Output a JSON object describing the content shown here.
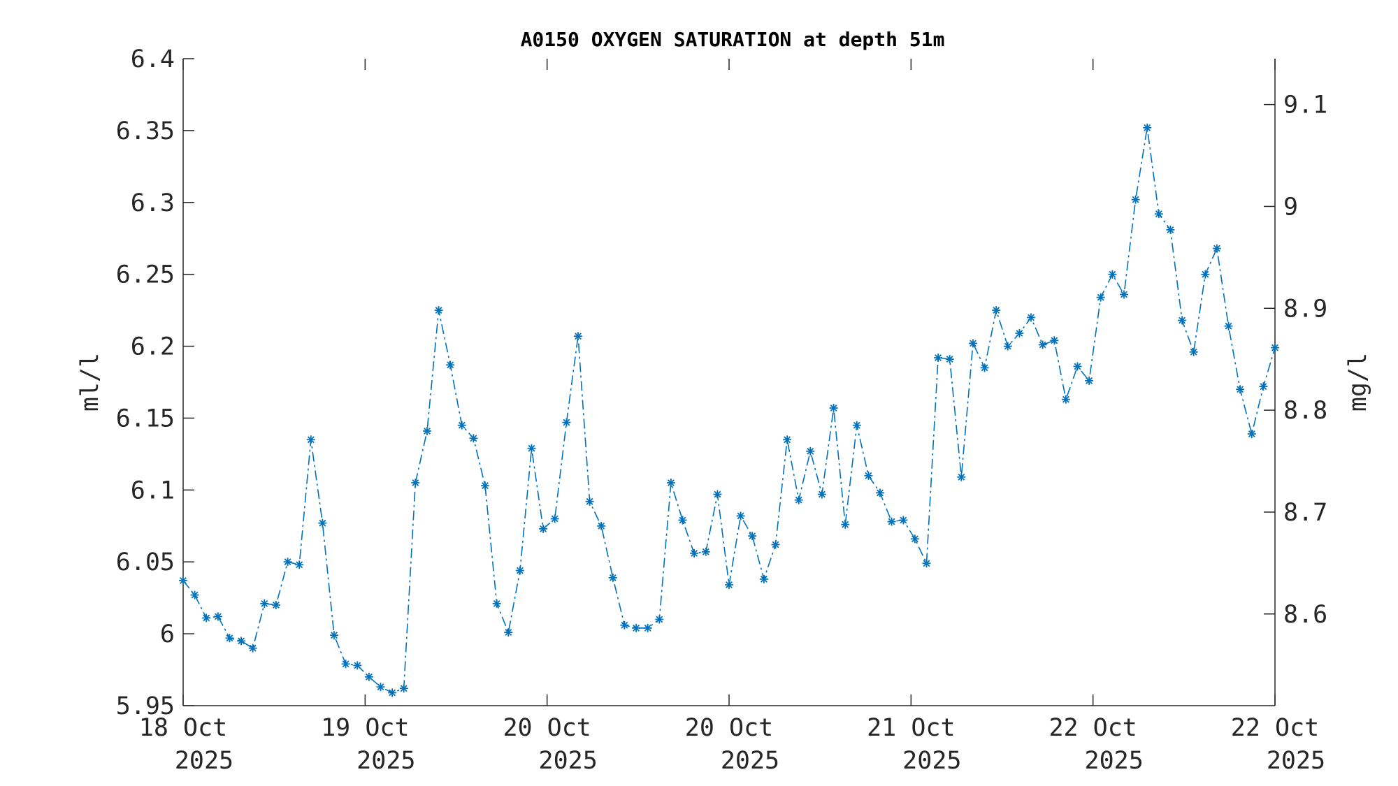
{
  "chart_data": {
    "type": "line",
    "title": "A0150 OXYGEN SATURATION at depth 51m",
    "ylabel_left": "ml/l",
    "ylabel_right": "mg/l",
    "ylim_left": [
      5.95,
      6.4
    ],
    "ylim_right": [
      8.51,
      9.145
    ],
    "left_ticks": [
      "5.95",
      "6",
      "6.05",
      "6.1",
      "6.15",
      "6.2",
      "6.25",
      "6.3",
      "6.35",
      "6.4"
    ],
    "right_ticks": [
      "8.6",
      "8.7",
      "8.8",
      "8.9",
      "9",
      "9.1"
    ],
    "x_ticks": [
      {
        "day": "18 Oct",
        "year": "2025"
      },
      {
        "day": "19 Oct",
        "year": "2025"
      },
      {
        "day": "20 Oct",
        "year": "2025"
      },
      {
        "day": "20 Oct",
        "year": "2025"
      },
      {
        "day": "21 Oct",
        "year": "2025"
      },
      {
        "day": "22 Oct",
        "year": "2025"
      },
      {
        "day": "22 Oct",
        "year": "2025"
      }
    ],
    "grid": false,
    "series": [
      {
        "line_style": "dash-dot",
        "marker": "asterisk",
        "color": "#0072BD",
        "values": [
          6.037,
          6.027,
          6.011,
          6.012,
          5.997,
          5.995,
          5.99,
          6.021,
          6.02,
          6.05,
          6.048,
          6.135,
          6.077,
          5.999,
          5.979,
          5.978,
          5.97,
          5.963,
          5.959,
          5.962,
          6.105,
          6.141,
          6.225,
          6.187,
          6.145,
          6.136,
          6.103,
          6.021,
          6.001,
          6.044,
          6.129,
          6.073,
          6.08,
          6.147,
          6.207,
          6.092,
          6.075,
          6.039,
          6.006,
          6.004,
          6.004,
          6.01,
          6.105,
          6.079,
          6.056,
          6.057,
          6.097,
          6.034,
          6.082,
          6.068,
          6.038,
          6.062,
          6.135,
          6.093,
          6.127,
          6.097,
          6.157,
          6.076,
          6.145,
          6.11,
          6.098,
          6.078,
          6.079,
          6.066,
          6.049,
          6.192,
          6.191,
          6.109,
          6.202,
          6.185,
          6.225,
          6.2,
          6.209,
          6.22,
          6.201,
          6.204,
          6.163,
          6.186,
          6.176,
          6.234,
          6.25,
          6.236,
          6.302,
          6.352,
          6.292,
          6.281,
          6.218,
          6.196,
          6.25,
          6.268,
          6.214,
          6.17,
          6.139,
          6.172,
          6.199
        ]
      }
    ]
  }
}
